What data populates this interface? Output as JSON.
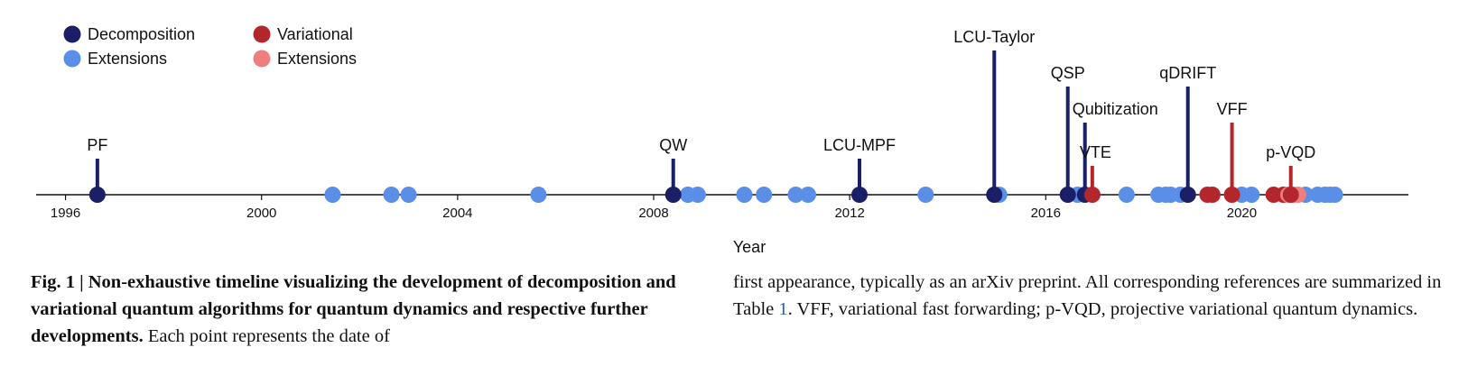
{
  "chart_data": {
    "type": "timeline",
    "xlabel": "Year",
    "xlim": [
      1995.4,
      2023.4
    ],
    "x_ticks": [
      1996,
      2000,
      2004,
      2008,
      2012,
      2016,
      2020
    ],
    "legend": {
      "placement": "top-left",
      "entries": [
        {
          "label": "Decomposition",
          "color": "#1b1f66"
        },
        {
          "label": "Extensions",
          "color": "#5b8ee6"
        },
        {
          "label": "Variational",
          "color": "#b3262b"
        },
        {
          "label": "Extensions",
          "color": "#ee7f7f"
        }
      ]
    },
    "categories": {
      "decomposition": {
        "color": "#1b1f66"
      },
      "decomposition_extension": {
        "color": "#5b8ee6"
      },
      "variational": {
        "color": "#b3262b"
      },
      "variational_extension": {
        "color": "#ee7f7f"
      }
    },
    "milestones": [
      {
        "label": "PF",
        "year": 1996.65,
        "stem": 1.0,
        "category": "decomposition"
      },
      {
        "label": "QW",
        "year": 2008.4,
        "stem": 1.0,
        "category": "decomposition"
      },
      {
        "label": "LCU-MPF",
        "year": 2012.2,
        "stem": 1.0,
        "category": "decomposition"
      },
      {
        "label": "LCU-Taylor",
        "year": 2014.95,
        "stem": 4.0,
        "category": "decomposition"
      },
      {
        "label": "QSP",
        "year": 2016.45,
        "stem": 3.0,
        "category": "decomposition"
      },
      {
        "label": "Qubitization",
        "year": 2016.8,
        "stem": 2.0,
        "category": "decomposition"
      },
      {
        "label": "VTE",
        "year": 2016.95,
        "stem": 0.8,
        "category": "variational"
      },
      {
        "label": "qDRIFT",
        "year": 2018.9,
        "stem": 3.0,
        "category": "decomposition"
      },
      {
        "label": "VFF",
        "year": 2019.8,
        "stem": 2.0,
        "category": "variational"
      },
      {
        "label": "p-VQD",
        "year": 2021.0,
        "stem": 0.8,
        "category": "variational"
      }
    ],
    "points": [
      {
        "year": 2001.45,
        "category": "decomposition_extension"
      },
      {
        "year": 2002.65,
        "category": "decomposition_extension"
      },
      {
        "year": 2003.0,
        "category": "decomposition_extension"
      },
      {
        "year": 2005.65,
        "category": "decomposition_extension"
      },
      {
        "year": 2008.7,
        "category": "decomposition_extension"
      },
      {
        "year": 2008.9,
        "category": "decomposition_extension"
      },
      {
        "year": 2009.85,
        "category": "decomposition_extension"
      },
      {
        "year": 2010.25,
        "category": "decomposition_extension"
      },
      {
        "year": 2010.9,
        "category": "decomposition_extension"
      },
      {
        "year": 2011.15,
        "category": "decomposition_extension"
      },
      {
        "year": 2013.55,
        "category": "decomposition_extension"
      },
      {
        "year": 2015.05,
        "category": "decomposition_extension"
      },
      {
        "year": 2016.65,
        "category": "decomposition_extension"
      },
      {
        "year": 2017.65,
        "category": "decomposition_extension"
      },
      {
        "year": 2018.3,
        "category": "decomposition_extension"
      },
      {
        "year": 2018.45,
        "category": "decomposition_extension"
      },
      {
        "year": 2018.55,
        "category": "decomposition_extension"
      },
      {
        "year": 2018.75,
        "category": "decomposition_extension"
      },
      {
        "year": 2020.0,
        "category": "decomposition_extension"
      },
      {
        "year": 2020.2,
        "category": "decomposition_extension"
      },
      {
        "year": 2021.3,
        "category": "decomposition_extension"
      },
      {
        "year": 2021.55,
        "category": "decomposition_extension"
      },
      {
        "year": 2021.7,
        "category": "decomposition_extension"
      },
      {
        "year": 2021.8,
        "category": "decomposition_extension"
      },
      {
        "year": 2021.9,
        "category": "decomposition_extension"
      },
      {
        "year": 2019.3,
        "category": "variational"
      },
      {
        "year": 2019.4,
        "category": "variational"
      },
      {
        "year": 2020.65,
        "category": "variational"
      },
      {
        "year": 2020.85,
        "category": "variational"
      },
      {
        "year": 2020.95,
        "category": "variational_extension"
      },
      {
        "year": 2021.05,
        "category": "variational_extension"
      },
      {
        "year": 2021.15,
        "category": "variational_extension"
      }
    ]
  },
  "caption": {
    "fig_label": "Fig. 1 | ",
    "bold_title": "Non-exhaustive timeline visualizing the development of decomposition and variational quantum algorithms for quantum dynamics and respective further developments.",
    "text_left": " Each point represents the date of",
    "text_right_before_ref": "first appearance, typically as an arXiv preprint. All corresponding references are summarized in Table ",
    "ref": "1",
    "text_right_after_ref": ". VFF, variational fast forwarding; p-VQD, projective variational quantum dynamics."
  }
}
